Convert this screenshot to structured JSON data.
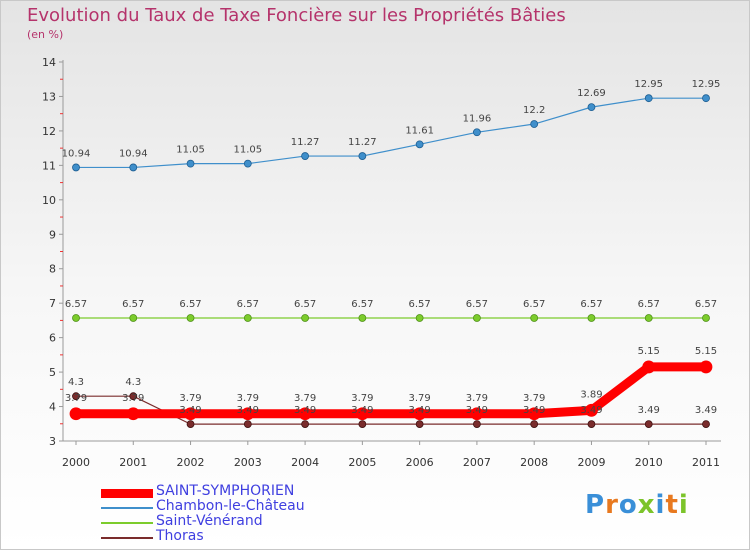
{
  "header": {
    "title": "Evolution du Taux de Taxe Foncière sur les Propriétés Bâties",
    "unit": "(en %)"
  },
  "chart_data": {
    "type": "line",
    "title": "Evolution du Taux de Taxe Foncière sur les Propriétés Bâties",
    "ylabel": "(en %)",
    "xlabel": "",
    "ylim": [
      3,
      14
    ],
    "yticks": [
      3,
      4,
      5,
      6,
      7,
      8,
      9,
      10,
      11,
      12,
      13,
      14
    ],
    "categories": [
      "2000",
      "2001",
      "2002",
      "2003",
      "2004",
      "2005",
      "2006",
      "2007",
      "2008",
      "2009",
      "2010",
      "2011"
    ],
    "series": [
      {
        "name": "SAINT-SYMPHORIEN",
        "color": "#ff0000",
        "values": [
          3.79,
          3.79,
          3.79,
          3.79,
          3.79,
          3.79,
          3.79,
          3.79,
          3.79,
          3.89,
          5.15,
          5.15
        ],
        "labels": [
          "3.79",
          "3.79",
          "3.79",
          "3.79",
          "3.79",
          "3.79",
          "3.79",
          "3.79",
          "3.79",
          "3.89",
          "5.15",
          "5.15"
        ]
      },
      {
        "name": "Chambon-le-Château",
        "color": "#3f8fcb",
        "values": [
          10.94,
          10.94,
          11.05,
          11.05,
          11.27,
          11.27,
          11.61,
          11.96,
          12.2,
          12.69,
          12.95,
          12.95
        ],
        "labels": [
          "10.94",
          "10.94",
          "11.05",
          "11.05",
          "11.27",
          "11.27",
          "11.61",
          "11.96",
          "12.2",
          "12.69",
          "12.95",
          "12.95"
        ]
      },
      {
        "name": "Saint-Vénérand",
        "color": "#7ccc2c",
        "values": [
          6.57,
          6.57,
          6.57,
          6.57,
          6.57,
          6.57,
          6.57,
          6.57,
          6.57,
          6.57,
          6.57,
          6.57
        ],
        "labels": [
          "6.57",
          "6.57",
          "6.57",
          "6.57",
          "6.57",
          "6.57",
          "6.57",
          "6.57",
          "6.57",
          "6.57",
          "6.57",
          "6.57"
        ]
      },
      {
        "name": "Thoras",
        "color": "#7a2c2c",
        "values": [
          4.3,
          4.3,
          3.49,
          3.49,
          3.49,
          3.49,
          3.49,
          3.49,
          3.49,
          3.49,
          3.49,
          3.49
        ],
        "labels": [
          "4.3",
          "4.3",
          "3.49",
          "3.49",
          "3.49",
          "3.49",
          "3.49",
          "3.49",
          "3.49",
          "3.49",
          "3.49",
          "3.49"
        ]
      }
    ],
    "legend": "bottom-left"
  },
  "logo": {
    "text": "Proxiti",
    "letter_colors": [
      "#3a8fd8",
      "#e8791f",
      "#3a8fd8",
      "#7cc42a",
      "#3a8fd8",
      "#e8791f",
      "#7cc42a"
    ]
  }
}
